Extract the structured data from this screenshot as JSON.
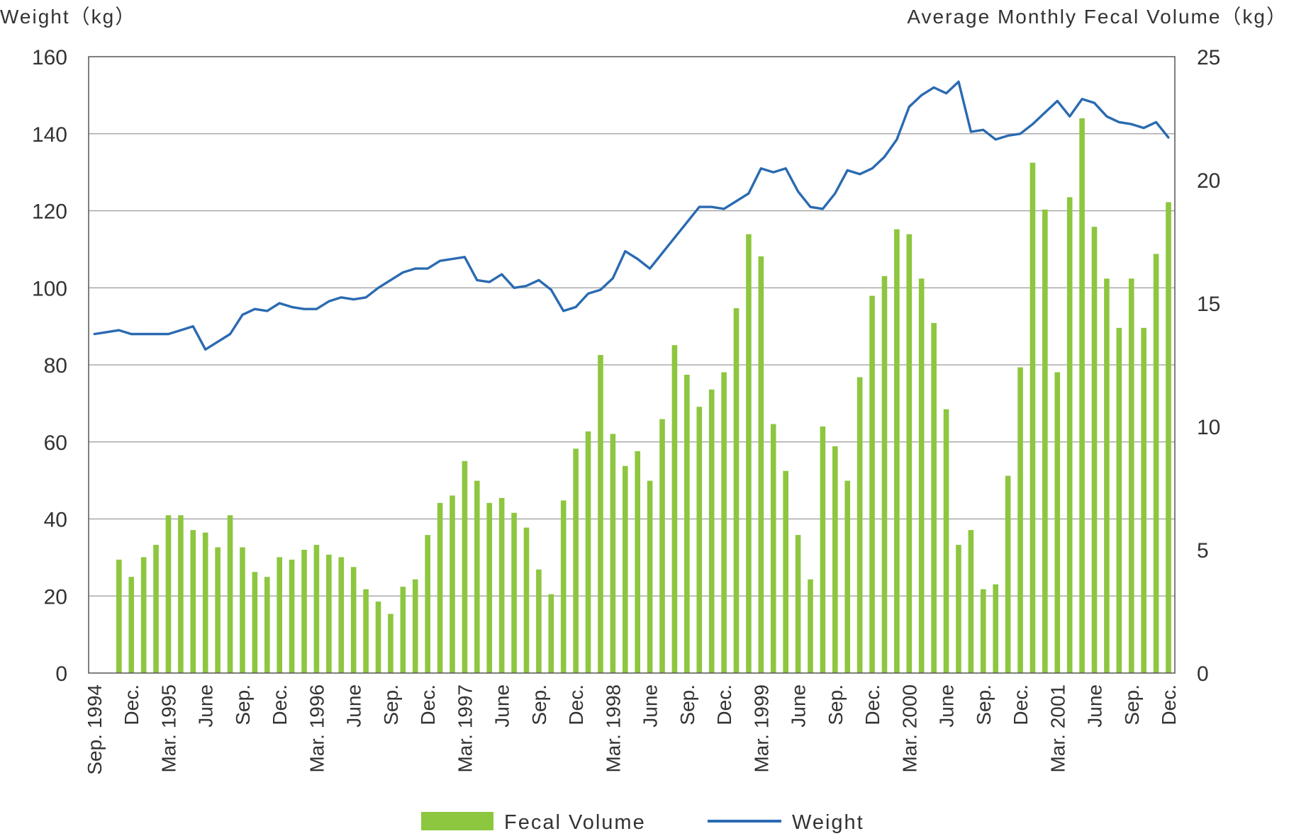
{
  "chart_data": {
    "type": "bar+line",
    "title": "",
    "ylabel_left": "Weight（kg）",
    "ylabel_right": "Average Monthly Fecal Volume（kg）",
    "ylim_left": [
      0,
      160
    ],
    "ylim_right": [
      0,
      25
    ],
    "yticks_left": [
      "0",
      "20",
      "40",
      "60",
      "80",
      "100",
      "120",
      "140",
      "160"
    ],
    "yticks_right": [
      "0",
      "5",
      "10",
      "15",
      "20",
      "25"
    ],
    "grid": true,
    "legend_position": "bottom",
    "x_labels": [
      {
        "i": 0,
        "text": "Sep. 1994"
      },
      {
        "i": 3,
        "text": "Dec."
      },
      {
        "i": 6,
        "text": "Mar. 1995"
      },
      {
        "i": 9,
        "text": "June"
      },
      {
        "i": 12,
        "text": "Sep."
      },
      {
        "i": 15,
        "text": "Dec."
      },
      {
        "i": 18,
        "text": "Mar. 1996"
      },
      {
        "i": 21,
        "text": "June"
      },
      {
        "i": 24,
        "text": "Sep."
      },
      {
        "i": 27,
        "text": "Dec."
      },
      {
        "i": 30,
        "text": "Mar. 1997"
      },
      {
        "i": 33,
        "text": "June"
      },
      {
        "i": 36,
        "text": "Sep."
      },
      {
        "i": 39,
        "text": "Dec."
      },
      {
        "i": 42,
        "text": "Mar. 1998"
      },
      {
        "i": 45,
        "text": "June"
      },
      {
        "i": 48,
        "text": "Sep."
      },
      {
        "i": 51,
        "text": "Dec."
      },
      {
        "i": 54,
        "text": "Mar. 1999"
      },
      {
        "i": 57,
        "text": "June"
      },
      {
        "i": 60,
        "text": "Sep."
      },
      {
        "i": 63,
        "text": "Dec."
      },
      {
        "i": 66,
        "text": "Mar. 2000"
      },
      {
        "i": 69,
        "text": "June"
      },
      {
        "i": 72,
        "text": "Sep."
      },
      {
        "i": 75,
        "text": "Dec."
      },
      {
        "i": 78,
        "text": "Mar. 2001"
      },
      {
        "i": 81,
        "text": "June"
      },
      {
        "i": 84,
        "text": "Sep."
      },
      {
        "i": 87,
        "text": "Dec."
      }
    ],
    "series": [
      {
        "name": "Fecal Volume",
        "type": "bar",
        "axis": "right",
        "color": "#8dc63f",
        "values": [
          null,
          null,
          4.6,
          3.9,
          4.7,
          5.2,
          6.4,
          6.4,
          5.8,
          5.7,
          5.1,
          6.4,
          5.1,
          4.1,
          3.9,
          4.7,
          4.6,
          5.0,
          5.2,
          4.8,
          4.7,
          4.3,
          3.4,
          2.9,
          2.4,
          3.5,
          3.8,
          5.6,
          6.9,
          7.2,
          8.6,
          7.8,
          6.9,
          7.1,
          6.5,
          5.9,
          4.2,
          3.2,
          7.0,
          9.1,
          9.8,
          12.9,
          9.7,
          8.4,
          9.0,
          7.8,
          10.3,
          13.3,
          12.1,
          10.8,
          11.5,
          12.2,
          14.8,
          17.8,
          16.9,
          10.1,
          8.2,
          5.6,
          3.8,
          10.0,
          9.2,
          7.8,
          12.0,
          15.3,
          16.1,
          18.0,
          17.8,
          16.0,
          14.2,
          10.7,
          5.2,
          5.8,
          3.4,
          3.6,
          8.0,
          12.4,
          20.7,
          18.8,
          12.2,
          19.3,
          22.5,
          18.1,
          16.0,
          14.0,
          16.0,
          14.0,
          17.0,
          19.1
        ]
      },
      {
        "name": "Weight",
        "type": "line",
        "axis": "left",
        "color": "#2a6ab1",
        "values": [
          88,
          88.5,
          89,
          88,
          88,
          88,
          88,
          89,
          90,
          84,
          86,
          88,
          93,
          94.5,
          94,
          96,
          95,
          94.5,
          94.5,
          96.5,
          97.5,
          97,
          97.5,
          100,
          102,
          104,
          105,
          105,
          107,
          107.5,
          108,
          102,
          101.5,
          103.5,
          100,
          100.5,
          102,
          99.5,
          94,
          95,
          98.5,
          99.5,
          102.5,
          109.5,
          107.5,
          105,
          109,
          113,
          117,
          121,
          121,
          120.5,
          122.5,
          124.5,
          131,
          130,
          131,
          125,
          121,
          120.5,
          124.5,
          130.5,
          129.5,
          131,
          134,
          138.5,
          147,
          150,
          152,
          150.5,
          153.5,
          140.5,
          141,
          138.5,
          139.5,
          140,
          142.5,
          145.5,
          148.5,
          144.5,
          149,
          148,
          144.5,
          143,
          142.5,
          141.5,
          143,
          139
        ]
      }
    ]
  },
  "legend": {
    "bar_label": "Fecal Volume",
    "line_label": "Weight"
  }
}
